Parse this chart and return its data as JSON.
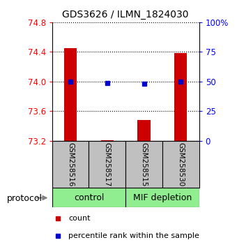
{
  "title": "GDS3626 / ILMN_1824030",
  "samples": [
    "GSM258516",
    "GSM258517",
    "GSM258515",
    "GSM258530"
  ],
  "groups": [
    "control",
    "control",
    "MIF depletion",
    "MIF depletion"
  ],
  "bar_values": [
    74.45,
    73.21,
    73.48,
    74.38
  ],
  "dot_values": [
    74.0,
    73.98,
    73.97,
    74.0
  ],
  "ylim_left": [
    73.2,
    74.8
  ],
  "ylim_right": [
    0,
    100
  ],
  "left_ticks": [
    73.2,
    73.6,
    74.0,
    74.4,
    74.8
  ],
  "right_ticks": [
    0,
    25,
    50,
    75,
    100
  ],
  "right_tick_labels": [
    "0",
    "25",
    "50",
    "75",
    "100%"
  ],
  "bar_color": "#CC0000",
  "dot_color": "#0000CC",
  "bar_bottom": 73.2,
  "sample_box_color": "#C0C0C0",
  "sample_box_edge": "#000000",
  "protocol_label": "protocol",
  "ctrl_label": "control",
  "mif_label": "MIF depletion",
  "group_color": "#90EE90",
  "legend_count": "count",
  "legend_pct": "percentile rank within the sample",
  "bar_width": 0.35
}
